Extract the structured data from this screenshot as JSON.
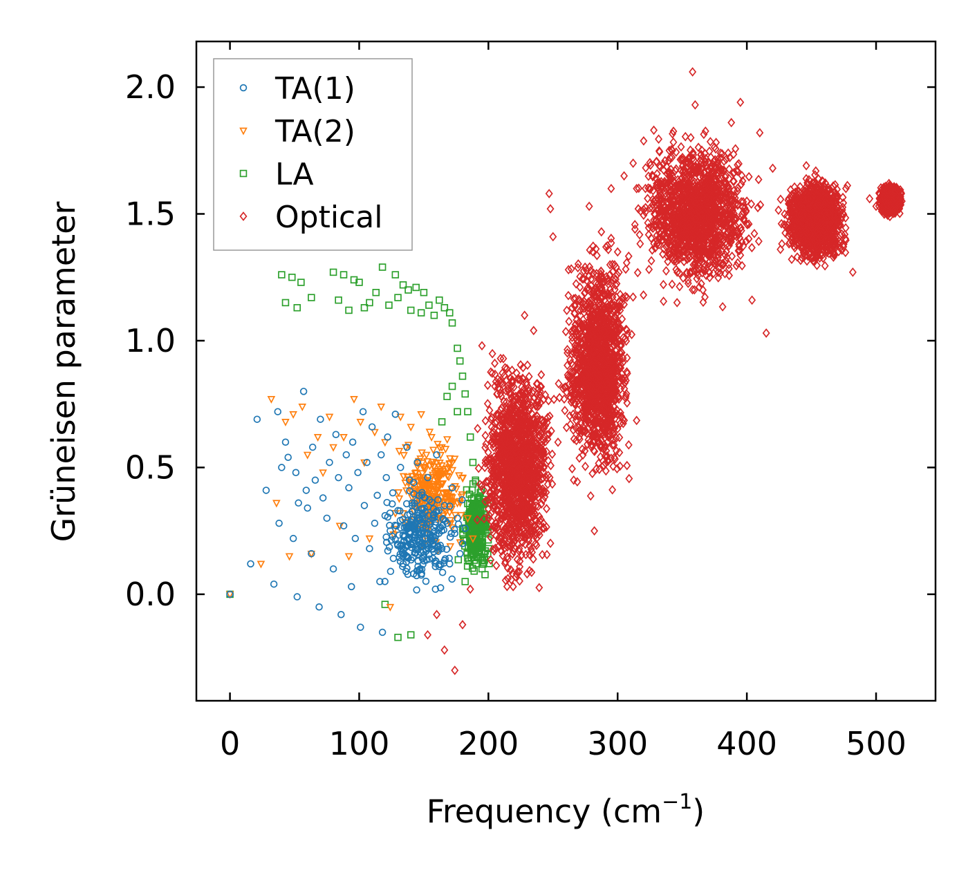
{
  "chart_data": {
    "type": "scatter",
    "title": "",
    "xlabel": "Frequency (cm",
    "xlabel_sup": "−1",
    "xlabel_tail": ")",
    "ylabel": "Grüneisen parameter",
    "xlim": [
      -26,
      546
    ],
    "ylim": [
      -0.42,
      2.18
    ],
    "xticks": [
      0,
      100,
      200,
      300,
      400,
      500
    ],
    "yticks": [
      0.0,
      0.5,
      1.0,
      1.5,
      2.0
    ],
    "xtick_labels": [
      "0",
      "100",
      "200",
      "300",
      "400",
      "500"
    ],
    "ytick_labels": [
      "0.0",
      "0.5",
      "1.0",
      "1.5",
      "2.0"
    ],
    "grid": false,
    "legend_position": "top-left",
    "series": [
      {
        "name": "TA(1)",
        "label": "TA(1)",
        "marker": "circle",
        "color": "#1f77b4",
        "x": [
          0,
          16,
          21,
          28,
          34,
          37,
          38,
          40,
          43,
          45,
          49,
          51,
          52,
          53,
          57,
          59,
          60,
          63,
          64,
          66,
          69,
          70,
          72,
          75,
          77,
          80,
          82,
          84,
          86,
          88,
          90,
          92,
          94,
          95,
          97,
          99,
          101,
          103,
          104,
          106,
          108,
          110,
          112,
          114,
          116,
          117,
          118,
          120,
          121,
          122,
          124,
          126,
          128,
          130,
          132,
          134,
          136,
          137,
          139,
          140,
          141,
          143,
          145,
          147,
          149,
          151,
          153,
          155,
          157,
          159,
          160,
          162,
          164,
          166,
          168,
          170,
          172,
          174,
          176,
          178,
          180,
          182
        ],
        "y": [
          0.0,
          0.12,
          0.69,
          0.41,
          0.04,
          0.72,
          0.28,
          0.5,
          0.6,
          0.54,
          0.22,
          0.48,
          -0.01,
          0.36,
          0.8,
          0.41,
          0.34,
          0.16,
          0.58,
          0.45,
          -0.05,
          0.69,
          0.38,
          0.3,
          0.52,
          0.1,
          0.63,
          0.46,
          -0.08,
          0.27,
          0.55,
          0.42,
          0.03,
          0.6,
          0.22,
          0.48,
          -0.13,
          0.72,
          0.35,
          0.52,
          0.18,
          0.66,
          0.28,
          0.39,
          0.05,
          0.55,
          -0.15,
          0.31,
          0.46,
          0.62,
          0.25,
          0.4,
          0.71,
          0.33,
          0.5,
          0.12,
          0.28,
          0.58,
          0.45,
          0.2,
          0.35,
          0.26,
          0.52,
          0.32,
          0.14,
          0.38,
          0.46,
          0.22,
          0.3,
          0.02,
          0.55,
          0.26,
          0.18,
          0.35,
          0.28,
          0.12,
          0.42,
          0.24,
          0.3,
          0.16,
          0.2,
          0.26
        ],
        "dense_cluster": {
          "x_range": [
            110,
            185
          ],
          "y_range": [
            -0.05,
            0.5
          ],
          "center": [
            157,
            0.27
          ]
        }
      },
      {
        "name": "TA(2)",
        "label": "TA(2)",
        "marker": "triangle-down",
        "color": "#ff7f0e",
        "x": [
          0,
          24,
          32,
          36,
          43,
          46,
          49,
          56,
          60,
          63,
          68,
          72,
          77,
          80,
          85,
          88,
          92,
          96,
          101,
          104,
          108,
          112,
          117,
          120,
          124,
          128,
          132,
          136,
          140,
          144,
          148,
          152,
          156,
          160,
          164,
          168,
          172,
          176,
          180,
          184,
          188
        ],
        "y": [
          0.0,
          0.12,
          0.77,
          0.36,
          0.68,
          0.15,
          0.71,
          0.74,
          0.55,
          0.16,
          0.62,
          0.48,
          0.7,
          0.58,
          0.27,
          0.62,
          0.15,
          0.77,
          0.68,
          0.52,
          0.22,
          0.64,
          0.74,
          0.6,
          -0.05,
          0.32,
          0.7,
          0.58,
          0.66,
          0.48,
          0.71,
          0.55,
          0.62,
          0.46,
          0.58,
          0.4,
          0.52,
          0.36,
          0.46,
          0.3,
          0.22
        ],
        "dense_cluster": {
          "x_range": [
            120,
            190
          ],
          "y_range": [
            0.1,
            0.7
          ],
          "center": [
            160,
            0.45
          ]
        }
      },
      {
        "name": "LA",
        "label": "LA",
        "marker": "square",
        "color": "#2ca02c",
        "x": [
          0,
          40,
          43,
          48,
          52,
          55,
          63,
          80,
          84,
          88,
          92,
          96,
          100,
          104,
          108,
          113,
          118,
          123,
          128,
          130,
          134,
          138,
          140,
          144,
          148,
          150,
          154,
          158,
          162,
          166,
          170,
          172,
          176,
          178,
          180,
          182,
          184,
          186,
          188,
          190,
          192,
          194,
          196,
          198,
          200,
          140,
          130,
          120,
          176,
          172,
          168,
          164,
          182
        ],
        "y": [
          0.0,
          1.26,
          1.15,
          1.25,
          1.13,
          1.23,
          1.17,
          1.27,
          1.16,
          1.26,
          1.12,
          1.24,
          1.23,
          1.13,
          1.15,
          1.19,
          1.29,
          1.14,
          1.26,
          1.17,
          1.22,
          1.2,
          1.12,
          1.21,
          1.11,
          1.19,
          1.14,
          1.1,
          1.16,
          1.13,
          1.11,
          1.07,
          0.97,
          0.92,
          0.86,
          0.79,
          0.72,
          0.62,
          0.52,
          0.45,
          0.38,
          0.33,
          0.28,
          0.24,
          0.18,
          -0.16,
          -0.17,
          -0.04,
          0.72,
          0.82,
          0.78,
          0.68,
          0.05
        ],
        "dense_cluster": {
          "x_range": [
            175,
            205
          ],
          "y_range": [
            0.0,
            0.5
          ],
          "center": [
            188,
            0.25
          ]
        }
      },
      {
        "name": "Optical",
        "label": "Optical",
        "marker": "diamond",
        "color": "#d62728",
        "x": [
          153,
          160,
          166,
          174,
          180,
          186,
          195,
          205,
          212,
          228,
          235,
          240,
          247,
          248,
          250,
          262,
          266,
          278,
          282,
          295,
          300,
          305,
          312,
          316,
          320,
          325,
          328,
          333,
          340,
          346,
          355,
          358,
          360,
          366,
          372,
          380,
          386,
          388,
          395,
          400,
          404,
          410,
          415,
          420,
          426,
          435,
          446,
          455,
          465,
          475,
          482,
          495,
          500,
          505,
          510,
          515,
          518,
          520
        ],
        "y": [
          -0.16,
          -0.08,
          -0.22,
          -0.3,
          -0.12,
          0.02,
          0.98,
          0.82,
          0.62,
          1.1,
          1.04,
          0.8,
          1.58,
          1.52,
          1.41,
          1.28,
          0.45,
          1.53,
          0.25,
          1.6,
          1.35,
          1.65,
          1.7,
          1.52,
          1.18,
          1.6,
          1.83,
          1.46,
          1.75,
          1.15,
          1.62,
          2.06,
          1.93,
          1.2,
          1.48,
          1.72,
          1.3,
          1.86,
          1.94,
          1.55,
          1.16,
          1.82,
          1.03,
          1.68,
          1.36,
          1.48,
          1.69,
          1.58,
          1.47,
          1.38,
          1.27,
          1.56,
          1.53,
          1.6,
          1.62,
          1.58,
          1.52,
          1.55
        ],
        "dense_clusters": [
          {
            "x_range": [
              185,
              260
            ],
            "y_range": [
              -0.1,
              1.1
            ]
          },
          {
            "x_range": [
              250,
              320
            ],
            "y_range": [
              0.3,
              1.5
            ]
          },
          {
            "x_range": [
              300,
              420
            ],
            "y_range": [
              1.1,
              1.9
            ]
          },
          {
            "x_range": [
              420,
              485
            ],
            "y_range": [
              1.25,
              1.7
            ]
          },
          {
            "x_range": [
              500,
              522
            ],
            "y_range": [
              1.48,
              1.63
            ]
          }
        ]
      }
    ]
  }
}
